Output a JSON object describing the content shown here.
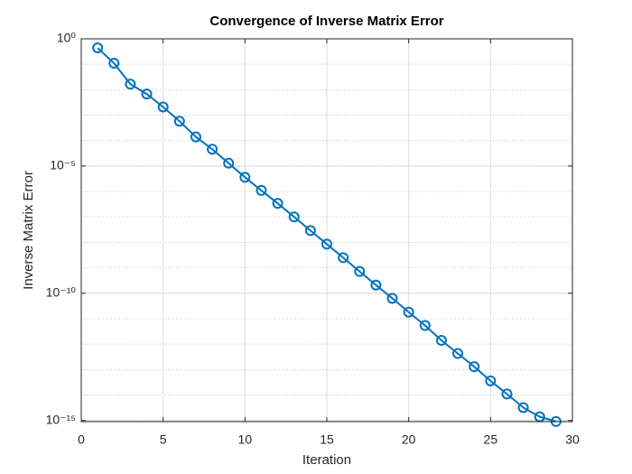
{
  "chart_data": {
    "type": "line",
    "title": "Convergence of Inverse Matrix Error",
    "x_label": "Iteration",
    "y_label": "Inverse Matrix Error",
    "x": [
      1,
      2,
      3,
      4,
      5,
      6,
      7,
      8,
      9,
      10,
      11,
      12,
      13,
      14,
      15,
      16,
      17,
      18,
      19,
      20,
      21,
      22,
      23,
      24,
      25,
      26,
      27,
      28,
      29
    ],
    "series": [
      {
        "name": "Inverse Matrix Error",
        "color": "#0072bd",
        "values": [
          0.44,
          0.11,
          0.0166,
          0.0068,
          0.0021,
          0.00058,
          0.00014,
          4.6e-05,
          1.3e-05,
          3.6e-06,
          1.1e-06,
          3.4e-07,
          1e-07,
          2.9e-08,
          8.5e-09,
          2.5e-09,
          7.2e-10,
          2.1e-10,
          6.3e-11,
          1.8e-11,
          5.4e-12,
          1.4e-12,
          4.3e-13,
          1.3e-13,
          3.6e-14,
          1.1e-14,
          3.2e-15,
          1.4e-15,
          9.1e-16
        ]
      }
    ],
    "xlim": [
      0,
      30
    ],
    "xticks": [
      0,
      5,
      10,
      15,
      20,
      25,
      30
    ],
    "ylim": [
      9e-16,
      1
    ],
    "log_y": true,
    "yticks": [
      {
        "value": 1,
        "label": "10⁰"
      },
      {
        "value": 1e-05,
        "label": "10⁻⁵"
      },
      {
        "value": 1e-10,
        "label": "10⁻¹⁰"
      },
      {
        "value": 1e-15,
        "label": "10⁻¹⁵"
      }
    ],
    "grid": true,
    "minor_grid": true,
    "marker": "circle"
  }
}
